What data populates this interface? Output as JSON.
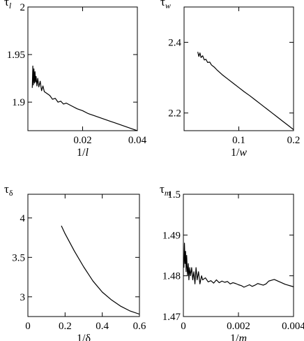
{
  "chart_data": [
    {
      "type": "line",
      "title_main": "τ",
      "title_sub": "l",
      "xlabel_prefix": "1/",
      "xlabel_var": "l",
      "xlim": [
        0,
        0.04
      ],
      "ylim": [
        1.87,
        2.0
      ],
      "xticks": [
        0,
        0.02,
        0.04
      ],
      "xtick_labels": [
        "",
        "0.02",
        "0.04"
      ],
      "yticks": [
        1.9,
        1.95,
        2.0
      ],
      "ytick_labels": [
        "1.9",
        "1.95",
        "2"
      ],
      "color": "#000000",
      "series": [
        {
          "x": [
            0.0016,
            0.0018,
            0.002,
            0.0022,
            0.0024,
            0.0026,
            0.0028,
            0.003,
            0.0033,
            0.0036,
            0.004,
            0.0045,
            0.005,
            0.0055,
            0.006,
            0.007,
            0.008,
            0.009,
            0.01,
            0.011,
            0.012,
            0.013,
            0.014,
            0.016,
            0.018,
            0.02,
            0.022,
            0.024,
            0.026,
            0.028,
            0.03,
            0.032,
            0.034,
            0.036,
            0.038,
            0.04
          ],
          "y": [
            1.915,
            1.938,
            1.918,
            1.935,
            1.92,
            1.932,
            1.921,
            1.927,
            1.917,
            1.925,
            1.916,
            1.922,
            1.912,
            1.917,
            1.911,
            1.909,
            1.907,
            1.903,
            1.904,
            1.9,
            1.901,
            1.898,
            1.899,
            1.896,
            1.893,
            1.891,
            1.888,
            1.886,
            1.884,
            1.882,
            1.88,
            1.878,
            1.876,
            1.874,
            1.872,
            1.87
          ]
        }
      ]
    },
    {
      "type": "line",
      "title_main": "τ",
      "title_sub": "w",
      "xlabel_prefix": "1/",
      "xlabel_var": "w",
      "xlim": [
        0,
        0.2
      ],
      "ylim": [
        2.15,
        2.5
      ],
      "xticks": [
        0,
        0.1,
        0.2
      ],
      "xtick_labels": [
        "",
        "0.1",
        "0.2"
      ],
      "yticks": [
        2.2,
        2.4
      ],
      "ytick_labels": [
        "2.2",
        "2.4"
      ],
      "color": "#000000",
      "series": [
        {
          "x": [
            0.025,
            0.027,
            0.029,
            0.031,
            0.034,
            0.037,
            0.04,
            0.043,
            0.047,
            0.05,
            0.055,
            0.06,
            0.07,
            0.08,
            0.09,
            0.1,
            0.11,
            0.12,
            0.13,
            0.14,
            0.15,
            0.16,
            0.17,
            0.18,
            0.19,
            0.2
          ],
          "y": [
            2.373,
            2.36,
            2.37,
            2.357,
            2.362,
            2.35,
            2.352,
            2.343,
            2.344,
            2.336,
            2.33,
            2.322,
            2.308,
            2.296,
            2.284,
            2.272,
            2.26,
            2.249,
            2.237,
            2.225,
            2.213,
            2.201,
            2.189,
            2.177,
            2.165,
            2.153
          ]
        }
      ]
    },
    {
      "type": "line",
      "title_main": "τ",
      "title_sub": "δ",
      "xlabel_prefix": "1/",
      "xlabel_var": "δ",
      "xlim": [
        0,
        0.6
      ],
      "ylim": [
        2.75,
        4.3
      ],
      "xticks": [
        0,
        0.2,
        0.4,
        0.6
      ],
      "xtick_labels": [
        "0",
        "0.2",
        "0.4",
        "0.6"
      ],
      "yticks": [
        3.0,
        3.5,
        4.0
      ],
      "ytick_labels": [
        "3",
        "3.5",
        "4"
      ],
      "color": "#000000",
      "series": [
        {
          "x": [
            0.18,
            0.2,
            0.25,
            0.3,
            0.35,
            0.4,
            0.45,
            0.5,
            0.55,
            0.6
          ],
          "y": [
            3.9,
            3.8,
            3.58,
            3.38,
            3.2,
            3.06,
            2.96,
            2.88,
            2.82,
            2.78
          ]
        }
      ]
    },
    {
      "type": "line",
      "title_main": "τ",
      "title_sub": "m",
      "xlabel_prefix": "1/",
      "xlabel_var": "m",
      "xlim": [
        0,
        0.004
      ],
      "ylim": [
        1.47,
        1.5
      ],
      "xticks": [
        0,
        0.002,
        0.004
      ],
      "xtick_labels": [
        "0",
        "0.002",
        "0.004"
      ],
      "yticks": [
        1.47,
        1.48,
        1.49,
        1.5
      ],
      "ytick_labels": [
        "1.47",
        "1.48",
        "1.49",
        "1.5"
      ],
      "color": "#000000",
      "series": [
        {
          "x": [
            2e-05,
            4e-05,
            6e-05,
            8e-05,
            0.0001,
            0.00012,
            0.00015,
            0.00018,
            0.0002,
            0.00023,
            0.00026,
            0.0003,
            0.00034,
            0.00038,
            0.00042,
            0.00046,
            0.0005,
            0.00055,
            0.0006,
            0.00066,
            0.0007,
            0.0008,
            0.0009,
            0.001,
            0.0011,
            0.0012,
            0.0013,
            0.0014,
            0.0015,
            0.0016,
            0.0017,
            0.0018,
            0.0019,
            0.002,
            0.0021,
            0.0022,
            0.0023,
            0.0024,
            0.0025,
            0.0026,
            0.0027,
            0.0028,
            0.0029,
            0.003,
            0.0031,
            0.0032,
            0.0033,
            0.0034,
            0.0035,
            0.0036,
            0.0037,
            0.0038,
            0.0039,
            0.004
          ],
          "y": [
            1.482,
            1.488,
            1.483,
            1.486,
            1.481,
            1.485,
            1.48,
            1.483,
            1.479,
            1.482,
            1.48,
            1.482,
            1.479,
            1.481,
            1.478,
            1.482,
            1.479,
            1.481,
            1.478,
            1.48,
            1.479,
            1.4795,
            1.4785,
            1.4788,
            1.4782,
            1.479,
            1.4783,
            1.4787,
            1.4784,
            1.4786,
            1.478,
            1.4783,
            1.4781,
            1.4778,
            1.4776,
            1.4772,
            1.4775,
            1.4778,
            1.4774,
            1.4777,
            1.4781,
            1.4779,
            1.4777,
            1.478,
            1.4787,
            1.4789,
            1.4791,
            1.4788,
            1.4785,
            1.4782,
            1.4779,
            1.4777,
            1.4775,
            1.4773
          ]
        }
      ]
    }
  ]
}
